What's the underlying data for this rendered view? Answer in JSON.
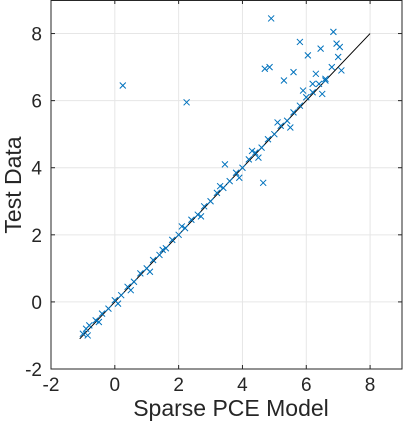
{
  "chart_data": {
    "type": "scatter",
    "title": "",
    "xlabel": "Sparse PCE Model",
    "ylabel": "Test Data",
    "xlim": [
      -2,
      9
    ],
    "ylim": [
      -2,
      9
    ],
    "xticks": [
      -2,
      0,
      2,
      4,
      6,
      8
    ],
    "yticks": [
      -2,
      0,
      2,
      4,
      6,
      8
    ],
    "xtick_labels": [
      "-2",
      "0",
      "2",
      "4",
      "6",
      "8"
    ],
    "ytick_labels": [
      "-2",
      "0",
      "2",
      "4",
      "6",
      "8"
    ],
    "grid": true,
    "box": true,
    "marker": "x",
    "reference_line": {
      "x": [
        -1.1,
        8.0
      ],
      "y": [
        -1.1,
        8.0
      ],
      "color": "#000000"
    },
    "colors": {
      "series": "#0072BD",
      "axis": "#262626",
      "grid": "#e6e6e6"
    },
    "series": [
      {
        "color": "#0072BD",
        "points": [
          [
            -1.0,
            -0.95
          ],
          [
            -0.9,
            -0.8
          ],
          [
            -0.8,
            -0.7
          ],
          [
            -0.6,
            -0.55
          ],
          [
            -0.4,
            -0.35
          ],
          [
            -0.2,
            -0.2
          ],
          [
            0.0,
            0.05
          ],
          [
            0.2,
            0.2
          ],
          [
            0.4,
            0.45
          ],
          [
            0.6,
            0.6
          ],
          [
            0.8,
            0.85
          ],
          [
            1.0,
            1.0
          ],
          [
            1.2,
            1.25
          ],
          [
            1.4,
            1.4
          ],
          [
            1.6,
            1.6
          ],
          [
            1.8,
            1.85
          ],
          [
            2.0,
            2.0
          ],
          [
            2.2,
            2.2
          ],
          [
            2.4,
            2.45
          ],
          [
            2.6,
            2.6
          ],
          [
            2.8,
            2.85
          ],
          [
            3.0,
            3.0
          ],
          [
            3.2,
            3.25
          ],
          [
            3.4,
            3.4
          ],
          [
            3.6,
            3.6
          ],
          [
            3.8,
            3.85
          ],
          [
            4.0,
            4.0
          ],
          [
            4.2,
            4.25
          ],
          [
            4.4,
            4.45
          ],
          [
            4.6,
            4.6
          ],
          [
            4.8,
            4.85
          ],
          [
            5.0,
            5.0
          ],
          [
            5.2,
            5.25
          ],
          [
            5.4,
            5.4
          ],
          [
            5.6,
            5.65
          ],
          [
            5.8,
            5.85
          ],
          [
            6.0,
            6.1
          ],
          [
            6.2,
            6.25
          ],
          [
            6.4,
            6.5
          ],
          [
            6.6,
            6.6
          ],
          [
            -0.85,
            -1.0
          ],
          [
            -0.5,
            -0.6
          ],
          [
            0.1,
            -0.05
          ],
          [
            0.5,
            0.35
          ],
          [
            1.1,
            0.9
          ],
          [
            1.5,
            1.55
          ],
          [
            2.1,
            2.25
          ],
          [
            2.7,
            2.55
          ],
          [
            3.3,
            3.45
          ],
          [
            3.9,
            3.7
          ],
          [
            4.3,
            4.5
          ],
          [
            4.5,
            4.3
          ],
          [
            5.1,
            5.35
          ],
          [
            5.5,
            5.2
          ],
          [
            5.9,
            6.3
          ],
          [
            6.3,
            6.8
          ],
          [
            6.5,
            6.2
          ],
          [
            6.8,
            7.0
          ],
          [
            7.0,
            7.3
          ],
          [
            7.1,
            6.9
          ],
          [
            0.25,
            6.45
          ],
          [
            2.25,
            5.95
          ],
          [
            4.65,
            3.55
          ],
          [
            3.45,
            4.1
          ],
          [
            4.85,
            7.0
          ],
          [
            4.9,
            8.45
          ],
          [
            5.6,
            6.85
          ],
          [
            5.8,
            7.75
          ],
          [
            6.05,
            7.35
          ],
          [
            6.45,
            7.55
          ],
          [
            6.6,
            6.65
          ],
          [
            6.85,
            8.05
          ],
          [
            6.95,
            7.7
          ],
          [
            7.05,
            7.6
          ],
          [
            6.2,
            6.5
          ],
          [
            4.7,
            6.95
          ],
          [
            5.3,
            6.6
          ]
        ]
      }
    ]
  }
}
